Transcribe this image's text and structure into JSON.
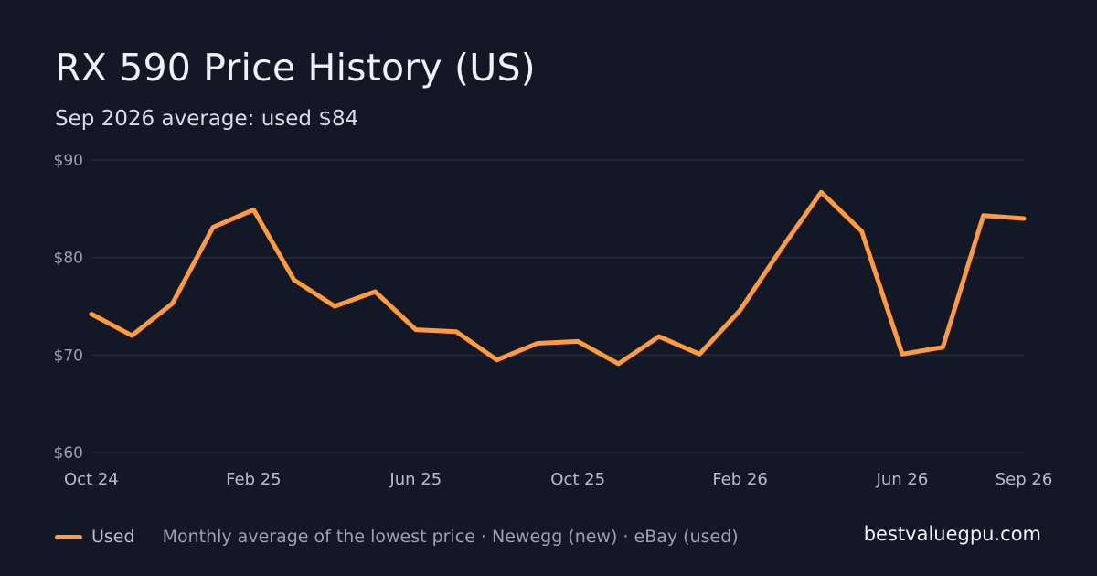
{
  "header": {
    "title": "RX 590 Price History (US)",
    "subtitle": "Sep 2026 average: used $84"
  },
  "footer": {
    "legend_label": "Used",
    "note": "Monthly average of the lowest price · Newegg (new) · eBay (used)",
    "brand": "bestvaluegpu.com"
  },
  "colors": {
    "background": "#121826",
    "series_used": "#ff9a3d",
    "gridline": "#242c3b"
  },
  "chart_data": {
    "type": "line",
    "title": "RX 590 Price History (US)",
    "subtitle": "Sep 2026 average: used $84",
    "x": [
      "2024-10",
      "2024-11",
      "2024-12",
      "2025-01",
      "2025-02",
      "2025-03",
      "2025-04",
      "2025-05",
      "2025-06",
      "2025-07",
      "2025-08",
      "2025-09",
      "2025-10",
      "2025-11",
      "2025-12",
      "2026-01",
      "2026-02",
      "2026-03",
      "2026-04",
      "2026-05",
      "2026-06",
      "2026-07",
      "2026-08",
      "2026-09"
    ],
    "series": [
      {
        "name": "Used",
        "color": "#ff9a3d",
        "values": [
          74.2,
          72.0,
          75.3,
          83.1,
          84.9,
          77.7,
          75.0,
          76.5,
          72.6,
          72.4,
          69.5,
          71.2,
          71.4,
          69.1,
          71.9,
          70.1,
          74.6,
          80.8,
          86.7,
          82.7,
          70.1,
          70.8,
          84.3,
          84.0
        ]
      }
    ],
    "x_tick_labels": [
      "Oct 24",
      "Feb 25",
      "Jun 25",
      "Oct 25",
      "Feb 26",
      "Jun 26",
      "Sep 26"
    ],
    "x_tick_positions": [
      0,
      4,
      8,
      12,
      16,
      20,
      23
    ],
    "y_ticks": [
      60,
      70,
      80,
      90
    ],
    "y_tick_labels": [
      "$60",
      "$70",
      "$80",
      "$90"
    ],
    "ylim": [
      60,
      90
    ],
    "grid": true,
    "legend": "bottom-left",
    "xlabel": "",
    "ylabel": ""
  }
}
